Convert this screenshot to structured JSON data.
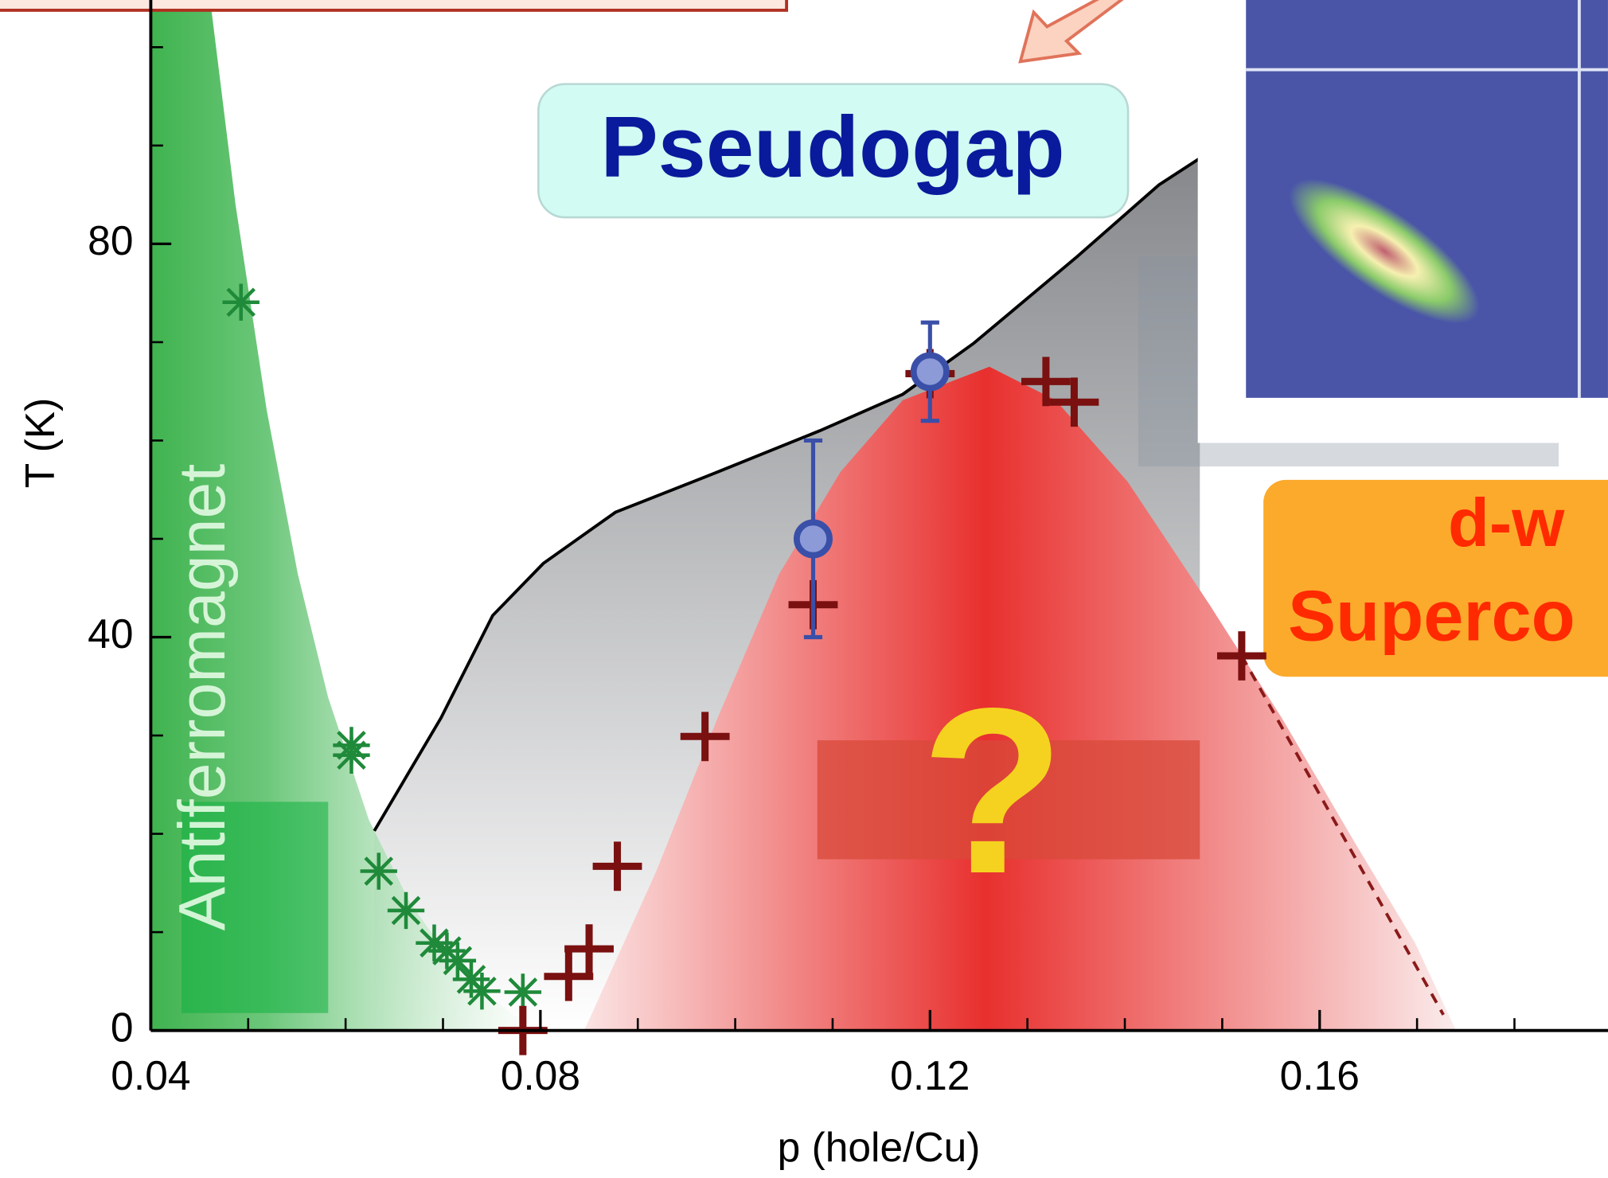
{
  "chart_data": {
    "type": "scatter",
    "x_label": "p (hole/Cu)",
    "y_label": "T (K)",
    "xlim": [
      0.04,
      0.1896
    ],
    "ylim": [
      0,
      104.8
    ],
    "xticks": [
      {
        "value": 0.04,
        "label": "0.04"
      },
      {
        "value": 0.08,
        "label": "0.08"
      },
      {
        "value": 0.12,
        "label": "0.12"
      },
      {
        "value": 0.16,
        "label": "0.16"
      }
    ],
    "xminorticks": [
      0.05,
      0.06,
      0.07,
      0.09,
      0.1,
      0.11,
      0.13,
      0.14,
      0.15,
      0.17,
      0.18
    ],
    "yticks": [
      0,
      40,
      80
    ],
    "yminorticks": [
      10,
      20,
      30,
      50,
      60,
      70,
      90,
      100
    ],
    "labels": {
      "pseudogap": "Pseudogap",
      "antiferromagnet": "Antiferromagnet",
      "question": "?",
      "dwave": [
        "d-w",
        "Superco"
      ]
    },
    "antiferromagnet_boundary": {
      "color": "#3fb34f",
      "x": [
        0.0461,
        0.0487,
        0.0519,
        0.0551,
        0.0582,
        0.0624,
        0.0666,
        0.0719,
        0.0793
      ],
      "y": [
        104.8,
        84.0,
        63.1,
        46.4,
        33.9,
        21.4,
        13.0,
        5.7,
        0
      ]
    },
    "pseudogap_line": {
      "color": "#000000",
      "x": [
        0.06295,
        0.0698,
        0.0751,
        0.0803,
        0.0877,
        0.0982,
        0.1087,
        0.1172,
        0.1245,
        0.1351,
        0.1435,
        0.1477
      ],
      "y": [
        20.3,
        31.8,
        42.2,
        47.5,
        52.7,
        56.8,
        61.0,
        64.7,
        69.9,
        78.7,
        86.0,
        88.7
      ]
    },
    "dome": {
      "color": "#e8302e",
      "x": [
        0.0845,
        0.0919,
        0.0982,
        0.1045,
        0.1108,
        0.1172,
        0.1261,
        0.1329,
        0.1403,
        0.1487,
        0.1561,
        0.1635,
        0.1698,
        0.174
      ],
      "y": [
        0,
        16.2,
        31.8,
        46.4,
        56.8,
        64.1,
        67.5,
        64.1,
        55.8,
        43.3,
        31.8,
        19.3,
        8.9,
        0
      ]
    },
    "dashed_line": {
      "color": "#8a1a1a",
      "x": [
        0.152,
        0.1727
      ],
      "y": [
        38.1,
        1.6
      ]
    },
    "series": [
      {
        "marker": "asterisk",
        "color": "#1f8a3a",
        "x": [
          0.04926,
          0.0606,
          0.0606,
          0.0634,
          0.0662,
          0.0691,
          0.0704,
          0.0715,
          0.0729,
          0.074,
          0.0782
        ],
        "y": [
          74.06,
          29.0,
          28.0,
          16.2,
          12.2,
          8.9,
          8.1,
          7.1,
          5.2,
          4.0,
          3.9
        ]
      },
      {
        "marker": "plus",
        "color": "#7a1010",
        "x": [
          0.0782,
          0.0829,
          0.085,
          0.0879,
          0.0969,
          0.108,
          0.12,
          0.1319,
          0.1348,
          0.152
        ],
        "y": [
          0,
          5.5,
          8.3,
          16.7,
          29.9,
          43.3,
          66.8,
          66.0,
          63.9,
          38.1
        ]
      },
      {
        "marker": "circle",
        "color": "#8c9ad8",
        "edge": "#3a4fa8",
        "x": [
          0.108,
          0.12
        ],
        "y": [
          50,
          67
        ],
        "err": [
          10,
          5
        ]
      }
    ]
  }
}
